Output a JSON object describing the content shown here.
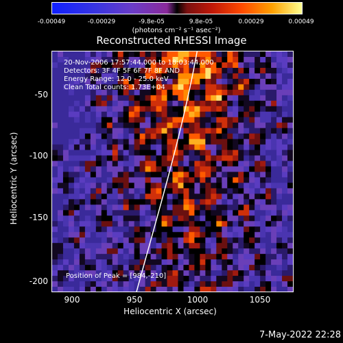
{
  "colorbar": {
    "ticks": [
      "-0.00049",
      "-0.00029",
      "-9.8e-05",
      "9.8e-05",
      "0.00029",
      "0.00049"
    ],
    "unit": "(photons cm⁻² s⁻¹ asec⁻²)"
  },
  "plot": {
    "title": "Reconstructed RHESSI Image",
    "info": [
      "20-Nov-2006 17:57:44.000 to 18:03:44.000",
      "Detectors: 3F 4F 5F 6F 7F 8F AND",
      "Energy Range: 12.0 - 25.0 keV",
      "Clean      Total counts: 1.73E+04"
    ],
    "peak_label": "Position of Peak = [984,-210]"
  },
  "axes": {
    "xlabel": "Heliocentric X (arcsec)",
    "ylabel": "Heliocentric Y (arcsec)",
    "xticks": [
      "900",
      "950",
      "1000",
      "1050"
    ],
    "yticks": [
      "-50",
      "-100",
      "-150",
      "-200"
    ]
  },
  "footer": "7-May-2022 22:28"
}
